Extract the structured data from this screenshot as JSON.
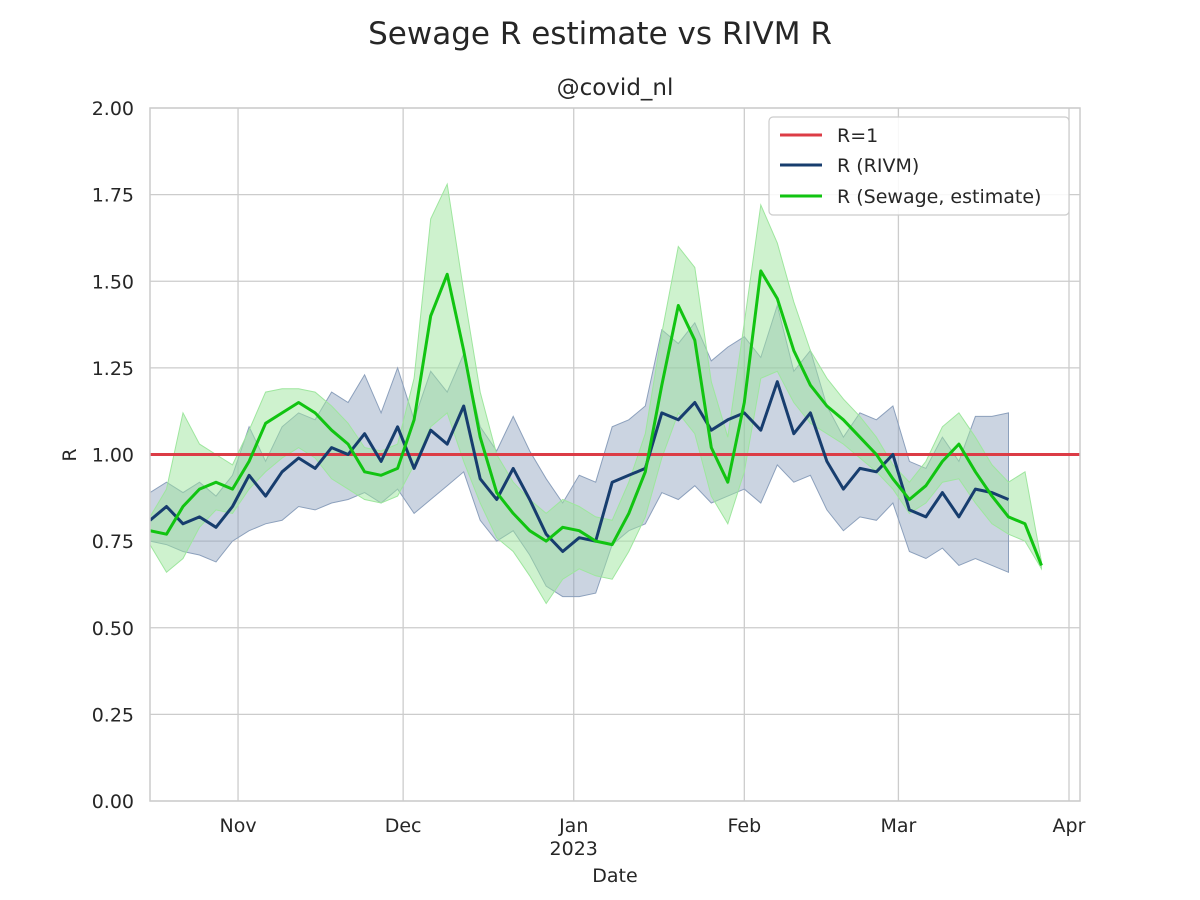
{
  "chart_data": {
    "type": "line",
    "title": "Sewage R estimate vs RIVM R",
    "subtitle": "@covid_nl",
    "xlabel": "Date",
    "ylabel": "R",
    "x_range": [
      "2022-10-16",
      "2023-04-03"
    ],
    "ylim": [
      0,
      2
    ],
    "y_ticks": [
      "0.00",
      "0.25",
      "0.50",
      "0.75",
      "1.00",
      "1.25",
      "1.50",
      "1.75",
      "2.00"
    ],
    "x_ticks": [
      {
        "date": "2022-11-01",
        "label": "Nov",
        "sublabel": ""
      },
      {
        "date": "2022-12-01",
        "label": "Dec",
        "sublabel": ""
      },
      {
        "date": "2023-01-01",
        "label": "Jan",
        "sublabel": "2023"
      },
      {
        "date": "2023-02-01",
        "label": "Feb",
        "sublabel": ""
      },
      {
        "date": "2023-03-01",
        "label": "Mar",
        "sublabel": ""
      },
      {
        "date": "2023-04-01",
        "label": "Apr",
        "sublabel": ""
      }
    ],
    "grid": true,
    "legend_position": "top-right",
    "reference_line": {
      "name": "R=1",
      "y": 1.0,
      "color": "#dc3c46"
    },
    "series": [
      {
        "name": "R (RIVM)",
        "color": "#173d6e",
        "band_color": "#8ca0bc",
        "x": [
          "2022-10-16",
          "2022-10-19",
          "2022-10-22",
          "2022-10-25",
          "2022-10-28",
          "2022-10-31",
          "2022-11-03",
          "2022-11-06",
          "2022-11-09",
          "2022-11-12",
          "2022-11-15",
          "2022-11-18",
          "2022-11-21",
          "2022-11-24",
          "2022-11-27",
          "2022-11-30",
          "2022-12-03",
          "2022-12-06",
          "2022-12-09",
          "2022-12-12",
          "2022-12-15",
          "2022-12-18",
          "2022-12-21",
          "2022-12-24",
          "2022-12-27",
          "2022-12-30",
          "2023-01-02",
          "2023-01-05",
          "2023-01-08",
          "2023-01-11",
          "2023-01-14",
          "2023-01-17",
          "2023-01-20",
          "2023-01-23",
          "2023-01-26",
          "2023-01-29",
          "2023-02-01",
          "2023-02-04",
          "2023-02-07",
          "2023-02-10",
          "2023-02-13",
          "2023-02-16",
          "2023-02-19",
          "2023-02-22",
          "2023-02-25",
          "2023-02-28",
          "2023-03-03",
          "2023-03-06",
          "2023-03-09",
          "2023-03-12",
          "2023-03-15",
          "2023-03-18",
          "2023-03-21"
        ],
        "y": [
          0.81,
          0.85,
          0.8,
          0.82,
          0.79,
          0.85,
          0.94,
          0.88,
          0.95,
          0.99,
          0.96,
          1.02,
          1.0,
          1.06,
          0.98,
          1.08,
          0.96,
          1.07,
          1.03,
          1.14,
          0.93,
          0.87,
          0.96,
          0.87,
          0.77,
          0.72,
          0.76,
          0.75,
          0.92,
          0.94,
          0.96,
          1.12,
          1.1,
          1.15,
          1.07,
          1.1,
          1.12,
          1.07,
          1.21,
          1.06,
          1.12,
          0.98,
          0.9,
          0.96,
          0.95,
          1.0,
          0.84,
          0.82,
          0.89,
          0.82,
          0.9,
          0.89,
          0.87
        ],
        "y_lower": [
          0.75,
          0.74,
          0.72,
          0.71,
          0.69,
          0.75,
          0.78,
          0.8,
          0.81,
          0.85,
          0.84,
          0.86,
          0.87,
          0.89,
          0.86,
          0.9,
          0.83,
          0.87,
          0.91,
          0.95,
          0.81,
          0.75,
          0.78,
          0.71,
          0.62,
          0.59,
          0.59,
          0.6,
          0.74,
          0.78,
          0.8,
          0.89,
          0.87,
          0.91,
          0.86,
          0.88,
          0.9,
          0.86,
          0.97,
          0.92,
          0.94,
          0.84,
          0.78,
          0.82,
          0.81,
          0.86,
          0.72,
          0.7,
          0.73,
          0.68,
          0.7,
          0.68,
          0.66
        ],
        "y_upper": [
          0.89,
          0.92,
          0.89,
          0.92,
          0.88,
          0.94,
          1.08,
          0.98,
          1.08,
          1.12,
          1.1,
          1.18,
          1.15,
          1.23,
          1.12,
          1.25,
          1.1,
          1.24,
          1.18,
          1.29,
          1.08,
          1.01,
          1.11,
          1.01,
          0.93,
          0.86,
          0.94,
          0.92,
          1.08,
          1.1,
          1.14,
          1.36,
          1.32,
          1.38,
          1.27,
          1.31,
          1.34,
          1.28,
          1.43,
          1.24,
          1.3,
          1.14,
          1.05,
          1.12,
          1.1,
          1.14,
          0.98,
          0.96,
          1.05,
          0.98,
          1.11,
          1.11,
          1.12
        ]
      },
      {
        "name": "R (Sewage, estimate)",
        "color": "#11c411",
        "band_color": "#9ee69e",
        "x": [
          "2022-10-16",
          "2022-10-19",
          "2022-10-22",
          "2022-10-25",
          "2022-10-28",
          "2022-10-31",
          "2022-11-03",
          "2022-11-06",
          "2022-11-09",
          "2022-11-12",
          "2022-11-15",
          "2022-11-18",
          "2022-11-21",
          "2022-11-24",
          "2022-11-27",
          "2022-11-30",
          "2022-12-03",
          "2022-12-06",
          "2022-12-09",
          "2022-12-12",
          "2022-12-15",
          "2022-12-18",
          "2022-12-21",
          "2022-12-24",
          "2022-12-27",
          "2022-12-30",
          "2023-01-02",
          "2023-01-05",
          "2023-01-08",
          "2023-01-11",
          "2023-01-14",
          "2023-01-17",
          "2023-01-20",
          "2023-01-23",
          "2023-01-26",
          "2023-01-29",
          "2023-02-01",
          "2023-02-04",
          "2023-02-07",
          "2023-02-10",
          "2023-02-13",
          "2023-02-16",
          "2023-02-19",
          "2023-02-22",
          "2023-02-25",
          "2023-02-28",
          "2023-03-03",
          "2023-03-06",
          "2023-03-09",
          "2023-03-12",
          "2023-03-15",
          "2023-03-18",
          "2023-03-21",
          "2023-03-24",
          "2023-03-27"
        ],
        "y": [
          0.78,
          0.77,
          0.85,
          0.9,
          0.92,
          0.9,
          0.98,
          1.09,
          1.12,
          1.15,
          1.12,
          1.07,
          1.03,
          0.95,
          0.94,
          0.96,
          1.1,
          1.4,
          1.52,
          1.3,
          1.05,
          0.89,
          0.83,
          0.78,
          0.75,
          0.79,
          0.78,
          0.75,
          0.74,
          0.83,
          0.95,
          1.2,
          1.43,
          1.33,
          1.02,
          0.92,
          1.15,
          1.53,
          1.45,
          1.3,
          1.2,
          1.14,
          1.1,
          1.05,
          1.0,
          0.93,
          0.87,
          0.91,
          0.98,
          1.03,
          0.95,
          0.88,
          0.82,
          0.8,
          0.68
        ],
        "y_lower": [
          0.74,
          0.66,
          0.7,
          0.79,
          0.84,
          0.83,
          0.9,
          0.95,
          0.99,
          1.02,
          0.99,
          0.93,
          0.9,
          0.87,
          0.86,
          0.88,
          0.97,
          1.08,
          1.12,
          0.98,
          0.86,
          0.76,
          0.72,
          0.65,
          0.57,
          0.64,
          0.67,
          0.65,
          0.64,
          0.72,
          0.82,
          0.99,
          1.12,
          1.06,
          0.88,
          0.8,
          0.95,
          1.22,
          1.24,
          1.15,
          1.09,
          1.06,
          1.03,
          0.99,
          0.95,
          0.9,
          0.83,
          0.86,
          0.92,
          0.93,
          0.86,
          0.8,
          0.77,
          0.75,
          0.67
        ],
        "y_upper": [
          0.82,
          0.9,
          1.12,
          1.03,
          1.0,
          0.97,
          1.07,
          1.18,
          1.19,
          1.19,
          1.18,
          1.14,
          1.09,
          1.02,
          1.01,
          1.03,
          1.22,
          1.68,
          1.78,
          1.47,
          1.18,
          1.0,
          0.92,
          0.87,
          0.83,
          0.87,
          0.85,
          0.82,
          0.81,
          0.92,
          1.06,
          1.35,
          1.6,
          1.54,
          1.21,
          1.05,
          1.38,
          1.72,
          1.61,
          1.44,
          1.3,
          1.22,
          1.16,
          1.11,
          1.05,
          0.97,
          0.92,
          0.98,
          1.08,
          1.12,
          1.05,
          0.97,
          0.92,
          0.95,
          0.69
        ]
      }
    ]
  }
}
